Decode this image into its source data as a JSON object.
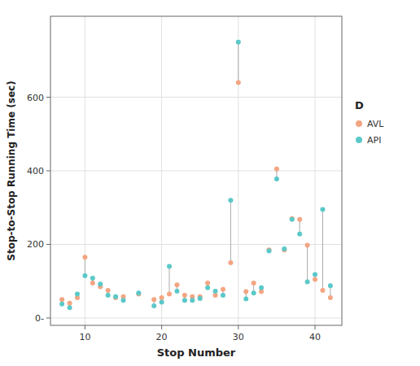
{
  "chart_data": {
    "type": "scatter",
    "xlabel": "Stop Number",
    "ylabel": "Stop-to-Stop Running Time (sec)",
    "legend_title": "D",
    "series": [
      {
        "name": "AVL",
        "color": "#F4A582",
        "x": [
          7,
          8,
          9,
          10,
          11,
          12,
          13,
          14,
          15,
          17,
          19,
          20,
          21,
          22,
          23,
          24,
          25,
          26,
          27,
          28,
          29,
          30,
          31,
          32,
          33,
          34,
          35,
          36,
          37,
          38,
          39,
          40,
          41,
          42
        ],
        "values": [
          50,
          40,
          55,
          165,
          95,
          85,
          75,
          55,
          58,
          65,
          50,
          55,
          65,
          90,
          62,
          58,
          58,
          95,
          62,
          78,
          150,
          640,
          72,
          95,
          72,
          185,
          405,
          185,
          270,
          268,
          198,
          105,
          75,
          55
        ]
      },
      {
        "name": "API",
        "color": "#5BC8C8",
        "x": [
          7,
          8,
          9,
          10,
          11,
          12,
          13,
          14,
          15,
          17,
          19,
          20,
          21,
          22,
          23,
          24,
          25,
          26,
          27,
          28,
          29,
          30,
          31,
          32,
          33,
          34,
          35,
          36,
          37,
          38,
          39,
          40,
          41,
          42
        ],
        "values": [
          38,
          28,
          65,
          115,
          108,
          92,
          62,
          58,
          48,
          68,
          33,
          43,
          140,
          73,
          48,
          48,
          53,
          82,
          73,
          62,
          320,
          750,
          52,
          68,
          82,
          182,
          378,
          188,
          268,
          228,
          98,
          118,
          295,
          88
        ]
      }
    ],
    "xlim": [
      5.5,
      43.5
    ],
    "xticks": [
      10,
      20,
      30,
      40
    ],
    "ylim": [
      -20,
      820
    ],
    "yticks": [
      {
        "value": 0,
        "label": "0-"
      },
      200,
      400,
      600
    ],
    "grid": true,
    "legend": "right"
  }
}
